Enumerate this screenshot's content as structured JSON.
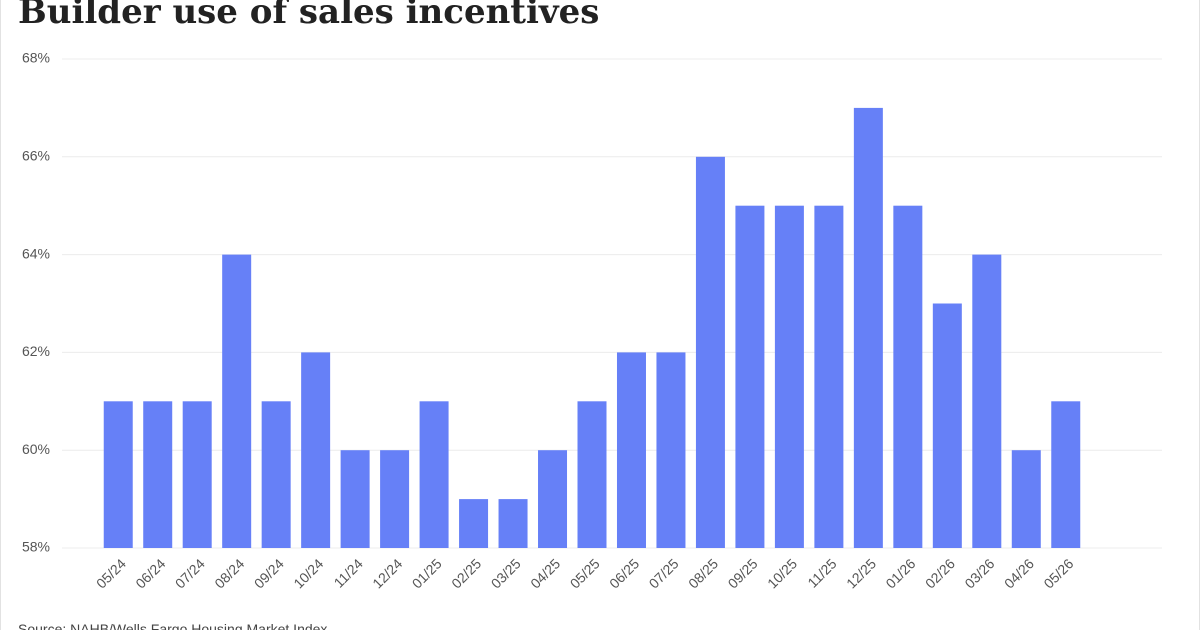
{
  "chart_data": {
    "type": "bar",
    "title": "Builder use of sales incentives",
    "source": "Source: NAHB/Wells Fargo Housing Market Index",
    "categories": [
      "05/24",
      "06/24",
      "07/24",
      "08/24",
      "09/24",
      "10/24",
      "11/24",
      "12/24",
      "01/25",
      "02/25",
      "03/25",
      "04/25",
      "05/25",
      "06/25",
      "07/25",
      "08/25",
      "09/25",
      "10/25",
      "11/25",
      "12/25",
      "01/26",
      "02/26",
      "03/26",
      "04/26",
      "05/26"
    ],
    "values": [
      61,
      61,
      61,
      64,
      61,
      62,
      60,
      60,
      61,
      59,
      59,
      60,
      61,
      62,
      62,
      66,
      65,
      65,
      65,
      67,
      65,
      63,
      64,
      60,
      61
    ],
    "color": "#6680f7",
    "ylim": [
      58,
      68
    ],
    "yticks": [
      {
        "value": 58,
        "label": "58%"
      },
      {
        "value": 60,
        "label": "60%"
      },
      {
        "value": 62,
        "label": "62%"
      },
      {
        "value": 64,
        "label": "64%"
      },
      {
        "value": 66,
        "label": "66%"
      },
      {
        "value": 68,
        "label": "68%"
      }
    ],
    "grid": true
  }
}
